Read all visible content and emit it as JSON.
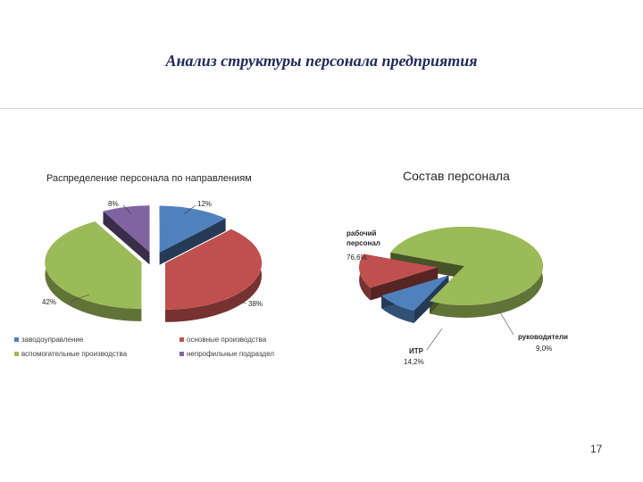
{
  "slide": {
    "title": "Анализ структуры персонала предприятия",
    "page_number": "17"
  },
  "colors": {
    "blue": "#4f81bd",
    "red": "#c0504d",
    "green": "#9bbb59",
    "purple": "#8064a2"
  },
  "chart_data": [
    {
      "type": "pie",
      "title": "Распределение персонала по направлениям",
      "categories": [
        "заводоуправление",
        "основные производства",
        "вспомогательные производства",
        "непрофильные подраздел"
      ],
      "values": [
        12,
        38,
        42,
        8
      ],
      "data_labels": [
        "12%",
        "38%",
        "42%",
        "8%"
      ],
      "colors": [
        "#4f81bd",
        "#c0504d",
        "#9bbb59",
        "#8064a2"
      ],
      "legend_position": "bottom",
      "style": "3d-exploded"
    },
    {
      "type": "pie",
      "title": "Состав персонала",
      "categories": [
        "рабочий персонал",
        "руководители",
        "ИТР"
      ],
      "values": [
        76.6,
        9.0,
        14.2
      ],
      "data_labels": [
        {
          "name": "рабочий персонал",
          "value": "76,6%"
        },
        {
          "name": "руководители",
          "value": "9,0%"
        },
        {
          "name": "ИТР",
          "value": "14,2%"
        }
      ],
      "colors": [
        "#9bbb59",
        "#4f81bd",
        "#c0504d"
      ],
      "style": "3d-exploded"
    }
  ]
}
